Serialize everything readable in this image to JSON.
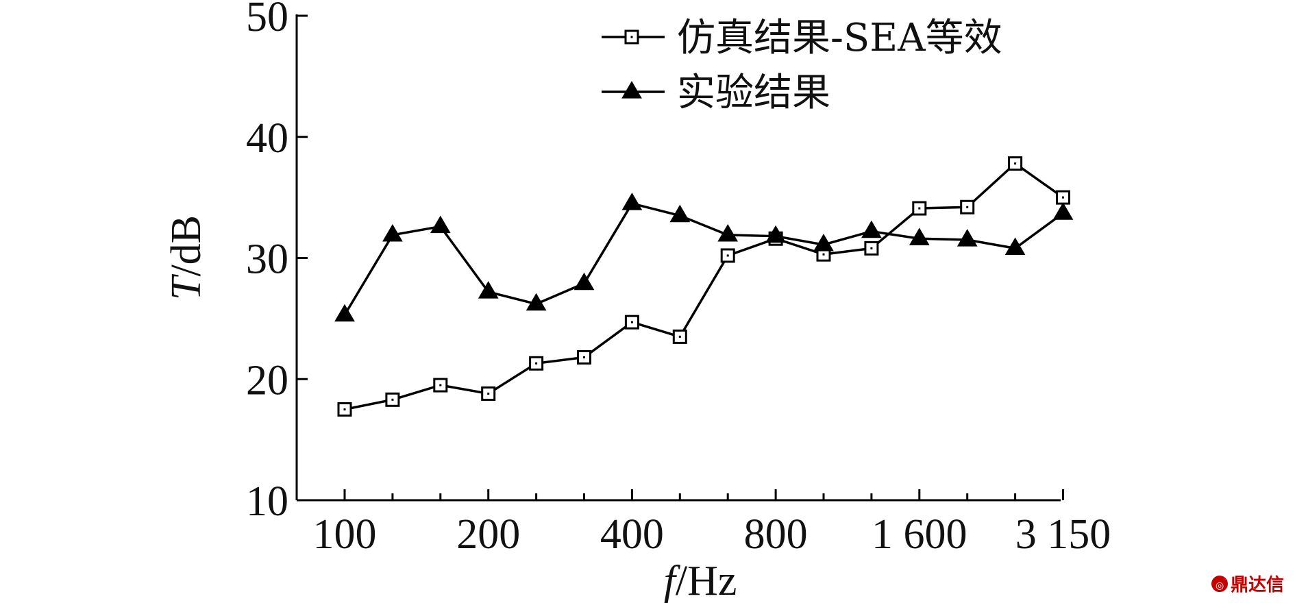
{
  "chart_data": {
    "type": "line",
    "x_categories": [
      "100",
      "",
      "",
      "200",
      "",
      "",
      "400",
      "",
      "",
      "800",
      "",
      "",
      "1 600",
      "",
      "",
      "3 150"
    ],
    "series": [
      {
        "name": "仿真结果-SEA等效",
        "marker": "open-square",
        "color": "#000000",
        "values": [
          17.5,
          18.3,
          19.5,
          18.8,
          21.3,
          21.8,
          24.7,
          23.5,
          30.2,
          31.6,
          30.3,
          30.8,
          34.1,
          34.2,
          37.8,
          35.0
        ]
      },
      {
        "name": "实验结果",
        "marker": "filled-triangle",
        "color": "#000000",
        "values": [
          25.3,
          31.9,
          32.6,
          27.2,
          26.2,
          27.9,
          34.5,
          33.5,
          31.9,
          31.8,
          31.1,
          32.2,
          31.6,
          31.5,
          30.8,
          33.7
        ]
      }
    ],
    "ylim": [
      10,
      50
    ],
    "yticks": [
      10,
      20,
      30,
      40,
      50
    ],
    "xtick_labels": [
      "100",
      "200",
      "400",
      "800",
      "1 600",
      "3 150"
    ],
    "ylabel": {
      "italic": "T",
      "rest": "/dB"
    },
    "xlabel": {
      "italic": "f",
      "rest": "/Hz"
    },
    "legend_position": "top-right",
    "grid": false
  },
  "watermark": {
    "text": "鼎达信",
    "icon": "brand-logo-icon",
    "color": "#c40000"
  }
}
